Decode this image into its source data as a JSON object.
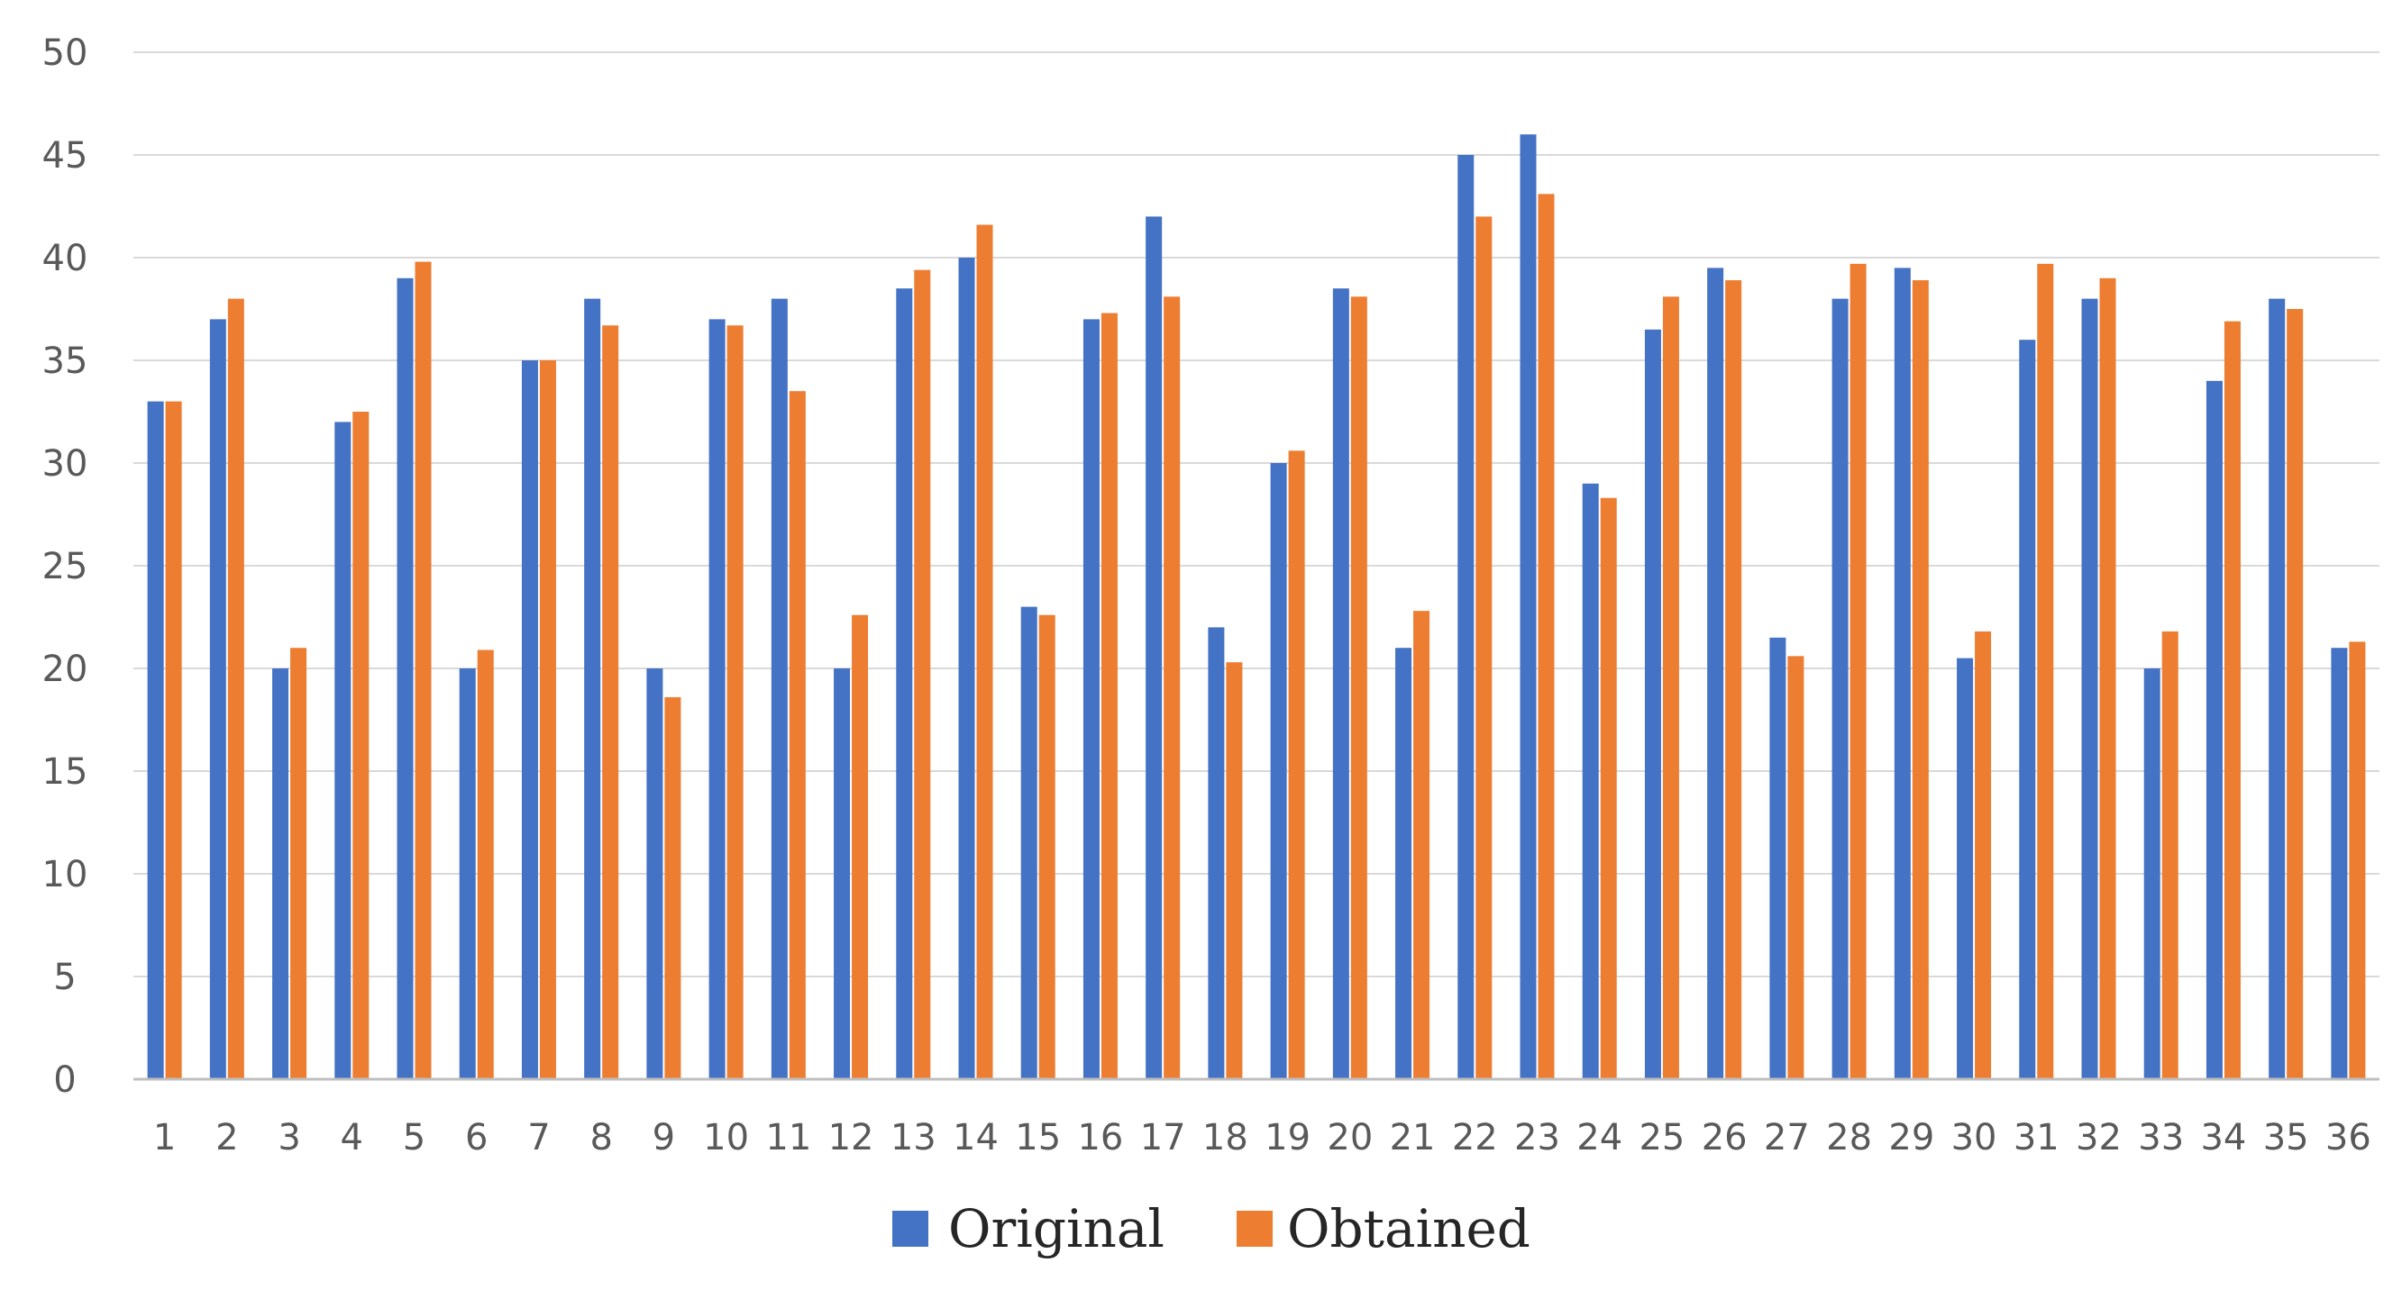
{
  "chart_data": {
    "type": "bar",
    "title": "",
    "xlabel": "",
    "ylabel": "",
    "ylim": [
      0,
      50
    ],
    "yticks": [
      0,
      5,
      10,
      15,
      20,
      25,
      30,
      35,
      40,
      45,
      50
    ],
    "grid": true,
    "legend_position": "bottom",
    "categories": [
      "1",
      "2",
      "3",
      "4",
      "5",
      "6",
      "7",
      "8",
      "9",
      "10",
      "11",
      "12",
      "13",
      "14",
      "15",
      "16",
      "17",
      "18",
      "19",
      "20",
      "21",
      "22",
      "23",
      "24",
      "25",
      "26",
      "27",
      "28",
      "29",
      "30",
      "31",
      "32",
      "33",
      "34",
      "35",
      "36"
    ],
    "series": [
      {
        "name": "Original",
        "color": "#4472c4",
        "values": [
          33,
          37,
          20,
          32,
          39,
          20,
          35,
          38,
          20,
          37,
          38,
          20,
          38.5,
          40,
          23,
          37,
          42,
          22,
          30,
          38.5,
          21,
          45,
          46,
          29,
          36.5,
          39.5,
          21.5,
          38,
          39.5,
          20.5,
          36,
          38,
          20,
          34,
          38,
          21
        ]
      },
      {
        "name": "Obtained",
        "color": "#ed7d31",
        "values": [
          33,
          38,
          21,
          32.5,
          39.8,
          20.9,
          35,
          36.7,
          18.6,
          36.7,
          33.5,
          22.6,
          39.4,
          41.6,
          22.6,
          37.3,
          38.1,
          20.3,
          30.6,
          38.1,
          22.8,
          42,
          43.1,
          28.3,
          38.1,
          38.9,
          20.6,
          39.7,
          38.9,
          21.8,
          39.7,
          39,
          21.8,
          36.9,
          37.5,
          21.3
        ]
      }
    ]
  }
}
